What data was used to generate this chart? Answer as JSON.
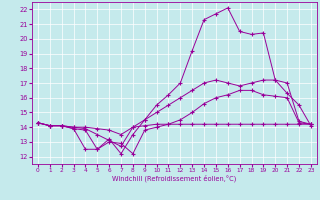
{
  "xlabel": "Windchill (Refroidissement éolien,°C)",
  "xlim": [
    -0.5,
    23.5
  ],
  "ylim": [
    11.5,
    22.5
  ],
  "xticks": [
    0,
    1,
    2,
    3,
    4,
    5,
    6,
    7,
    8,
    9,
    10,
    11,
    12,
    13,
    14,
    15,
    16,
    17,
    18,
    19,
    20,
    21,
    22,
    23
  ],
  "yticks": [
    12,
    13,
    14,
    15,
    16,
    17,
    18,
    19,
    20,
    21,
    22
  ],
  "bg_color": "#c5eaec",
  "line_color": "#990099",
  "grid_color": "#ffffff",
  "series": [
    [
      14.3,
      14.1,
      14.1,
      13.9,
      12.5,
      12.5,
      13.2,
      12.2,
      13.5,
      14.5,
      15.5,
      16.2,
      17.0,
      19.2,
      21.3,
      21.7,
      22.1,
      20.5,
      20.3,
      20.4,
      17.2,
      16.3,
      15.5,
      14.1
    ],
    [
      14.3,
      14.1,
      14.1,
      14.0,
      13.9,
      13.5,
      13.1,
      12.7,
      14.0,
      14.5,
      15.0,
      15.5,
      16.0,
      16.5,
      17.0,
      17.2,
      17.0,
      16.8,
      17.0,
      17.2,
      17.2,
      17.0,
      14.4,
      14.2
    ],
    [
      14.3,
      14.1,
      14.1,
      13.9,
      13.8,
      12.5,
      13.0,
      12.9,
      12.2,
      13.8,
      14.0,
      14.2,
      14.5,
      15.0,
      15.6,
      16.0,
      16.2,
      16.5,
      16.5,
      16.2,
      16.1,
      16.0,
      14.3,
      14.2
    ],
    [
      14.3,
      14.1,
      14.1,
      14.0,
      14.0,
      13.9,
      13.8,
      13.5,
      14.0,
      14.1,
      14.2,
      14.2,
      14.2,
      14.2,
      14.2,
      14.2,
      14.2,
      14.2,
      14.2,
      14.2,
      14.2,
      14.2,
      14.2,
      14.2
    ]
  ]
}
